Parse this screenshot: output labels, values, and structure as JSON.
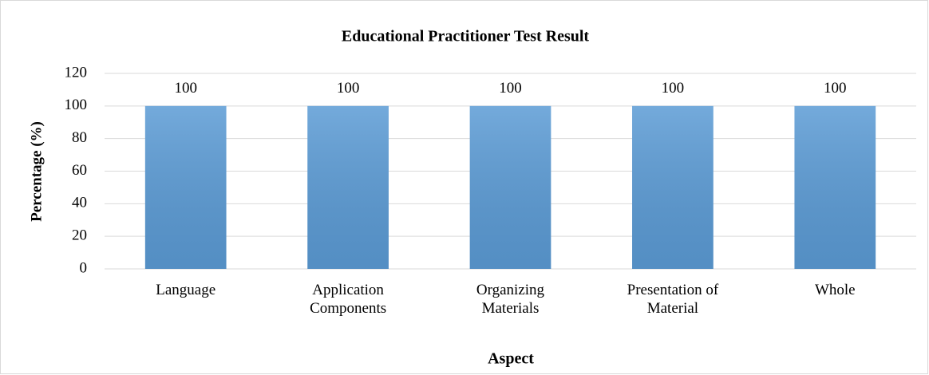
{
  "chart_data": {
    "type": "bar",
    "title": "Educational Practitioner Test Result",
    "x_label": "Aspect",
    "y_label": "Percentage (%)",
    "categories": [
      "Language",
      "Application Components",
      "Organizing Materials",
      "Presentation of Material",
      "Whole"
    ],
    "values": [
      100,
      100,
      100,
      100,
      100
    ],
    "color": "#5b9bd5",
    "ylim": [
      0,
      120
    ],
    "yticks": [
      0,
      20,
      40,
      60,
      80,
      100,
      120
    ],
    "grid": true
  }
}
